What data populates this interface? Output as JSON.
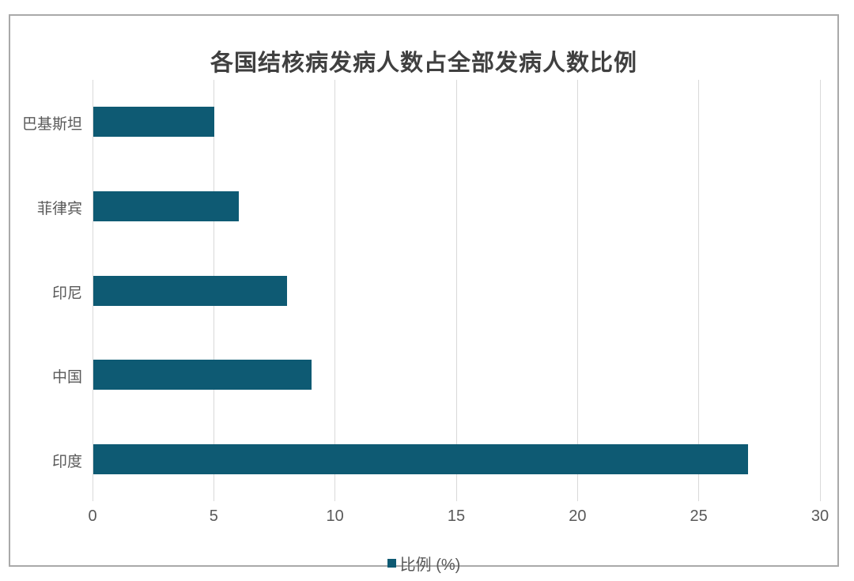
{
  "chart": {
    "colors": {
      "bar": "#0E5A73",
      "grid": "#D9D9D9",
      "title_text": "#404040",
      "axis_text": "#595959",
      "border": "#A9A9A9",
      "background": "#FFFFFF"
    }
  },
  "chart_data": {
    "type": "bar",
    "orientation": "horizontal",
    "title": "各国结核病发病人数占全部发病人数比例",
    "categories": [
      "巴基斯坦",
      "菲律宾",
      "印尼",
      "中国",
      "印度"
    ],
    "values": [
      5,
      6,
      8,
      9,
      27
    ],
    "xlabel": "",
    "ylabel": "",
    "xlim": [
      0,
      30
    ],
    "xticks": [
      0,
      5,
      10,
      15,
      20,
      25,
      30
    ],
    "grid": true,
    "legend": {
      "position": "bottom",
      "entries": [
        "比例 (%)"
      ]
    }
  }
}
